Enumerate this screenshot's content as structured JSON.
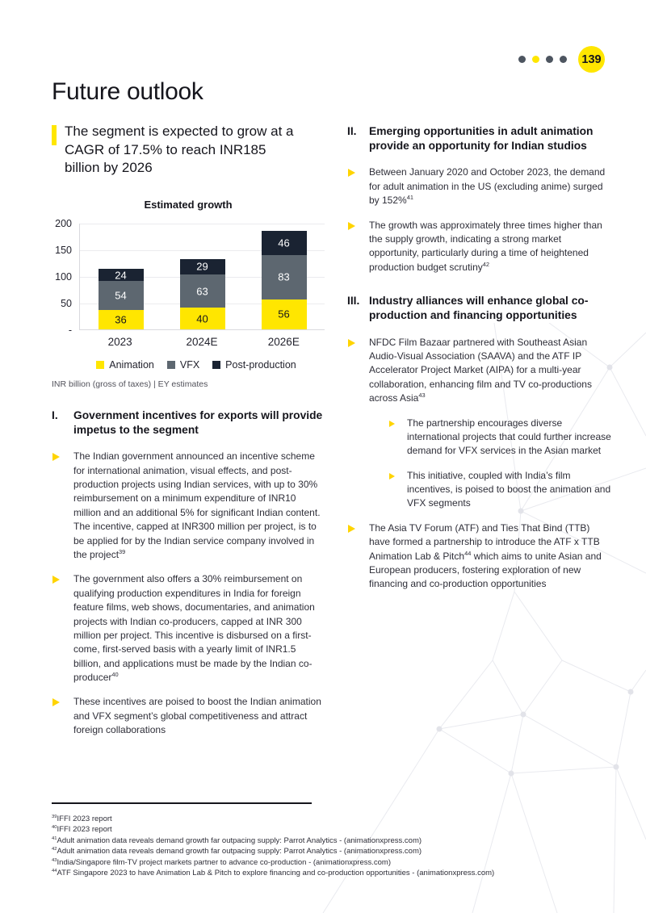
{
  "colors": {
    "accent_yellow": "#FFE600",
    "bullet_arrow": "#FFD400",
    "dot_gray": "#4d5560",
    "text_dark": "#15151c"
  },
  "header": {
    "page_number": "139",
    "dots": [
      "#4d5560",
      "#FFE600",
      "#4d5560",
      "#4d5560"
    ]
  },
  "title": "Future outlook",
  "highlight_heading": "The segment is expected to grow at a CAGR of 17.5% to reach INR185 billion by 2026",
  "chart_data": {
    "type": "bar",
    "stacked": true,
    "title": "Estimated growth",
    "categories": [
      "2023",
      "2024E",
      "2026E"
    ],
    "series": [
      {
        "name": "Animation",
        "color": "#FFE600",
        "label_color": "#15151c",
        "values": [
          36,
          40,
          56
        ]
      },
      {
        "name": "VFX",
        "color": "#5D6770",
        "label_color": "#ffffff",
        "values": [
          54,
          63,
          83
        ]
      },
      {
        "name": "Post-production",
        "color": "#1A2332",
        "label_color": "#ffffff",
        "values": [
          24,
          29,
          46
        ]
      }
    ],
    "totals": [
      114,
      132,
      185
    ],
    "ylim": [
      0,
      200
    ],
    "y_ticks": [
      "200",
      "150",
      "100",
      "50",
      "-"
    ],
    "grid": true,
    "legend_position": "bottom",
    "source_note": "INR billion (gross of taxes) | EY estimates"
  },
  "sections": [
    {
      "column": "left",
      "numeral": "I.",
      "heading": "Government incentives for exports will provide impetus to the segment",
      "bullets": [
        {
          "text": "The Indian government announced an incentive scheme for international animation, visual effects, and post-production projects using Indian services, with up to 30% reimbursement on a minimum expenditure of INR10 million and an additional 5% for significant Indian content. The incentive, capped at INR300 million per project, is to be applied for by the Indian service company involved in the project[39]"
        },
        {
          "text": "The government also offers a 30% reimbursement on qualifying production expenditures in India for foreign feature films, web shows, documentaries, and animation projects with Indian co-producers, capped at INR 300 million per project. This incentive is disbursed on a first-come, first-served basis with a yearly limit of INR1.5 billion, and applications must be made by the Indian co-producer[40]"
        },
        {
          "text": "These incentives are poised to boost the Indian animation and VFX segment’s global competitiveness and attract foreign collaborations"
        }
      ]
    },
    {
      "column": "right",
      "numeral": "II.",
      "heading": "Emerging opportunities in adult animation provide an opportunity for Indian studios",
      "bullets": [
        {
          "text": "Between January 2020 and October 2023, the demand for adult animation in the US (excluding anime) surged by 152%[41]"
        },
        {
          "text": "The growth was approximately three times higher than the supply growth, indicating a strong market opportunity, particularly during a time of heightened production budget scrutiny[42]"
        }
      ]
    },
    {
      "column": "right",
      "numeral": "III.",
      "heading": "Industry alliances will enhance global co-production and financing opportunities",
      "bullets": [
        {
          "text": "NFDC Film Bazaar partnered with Southeast Asian Audio-Visual Association (SAAVA) and the ATF IP Accelerator Project Market (AIPA) for a multi-year collaboration, enhancing film and TV co-productions across Asia[43]",
          "children": [
            {
              "text": "The partnership encourages diverse international projects that could further increase demand for VFX services in the Asian market"
            },
            {
              "text": "This initiative, coupled with India’s film incentives, is poised to boost the animation and VFX segments"
            }
          ]
        },
        {
          "text": "The Asia TV Forum (ATF) and Ties That Bind (TTB) have formed a partnership to introduce the ATF x TTB Animation Lab & Pitch[44] which aims to unite Asian and European producers, fostering exploration of new financing and co-production opportunities"
        }
      ]
    }
  ],
  "footnotes": [
    {
      "sup": "39",
      "text": "IFFI 2023 report"
    },
    {
      "sup": "40",
      "text": "IFFI 2023 report"
    },
    {
      "sup": "41",
      "text": "Adult animation data reveals demand growth far outpacing supply: Parrot Analytics - (animationxpress.com)"
    },
    {
      "sup": "42",
      "text": "Adult animation data reveals demand growth far outpacing supply: Parrot Analytics - (animationxpress.com)"
    },
    {
      "sup": "43",
      "text": "India/Singapore film-TV project markets partner to advance co-production - (animationxpress.com)"
    },
    {
      "sup": "44",
      "text": "ATF Singapore 2023 to have Animation Lab & Pitch to explore financing and co-production opportunities - (animationxpress.com)"
    }
  ]
}
